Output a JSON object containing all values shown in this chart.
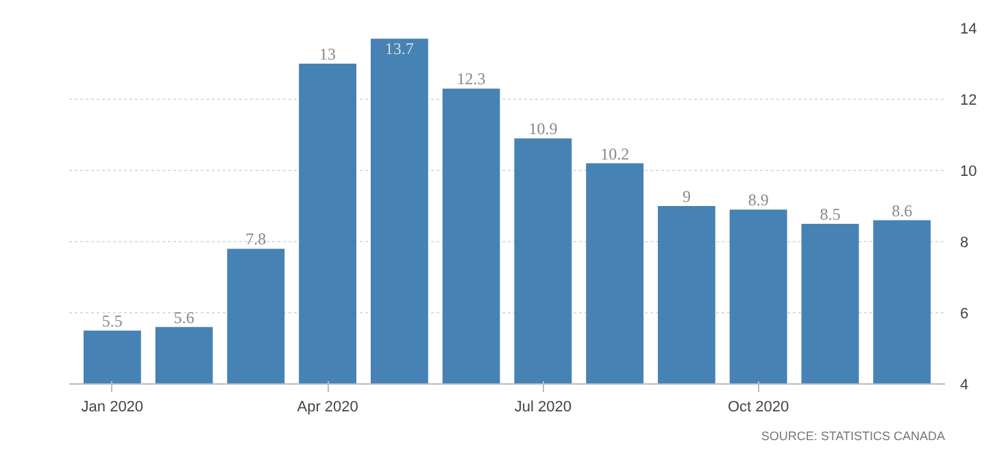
{
  "chart_data": {
    "type": "bar",
    "categories": [
      "Jan 2020",
      null,
      null,
      "Apr 2020",
      null,
      null,
      "Jul 2020",
      null,
      null,
      "Oct 2020",
      null,
      null
    ],
    "values": [
      5.5,
      5.6,
      7.8,
      13,
      13.7,
      12.3,
      10.9,
      10.2,
      9,
      8.9,
      8.5,
      8.6
    ],
    "color": "#4682b4",
    "ylim": [
      4,
      14
    ],
    "yticks": [
      4,
      6,
      8,
      10,
      12,
      14
    ],
    "grid": "y",
    "data_labels": true,
    "annotations": [
      "SOURCE: STATISTICS CANADA"
    ]
  }
}
